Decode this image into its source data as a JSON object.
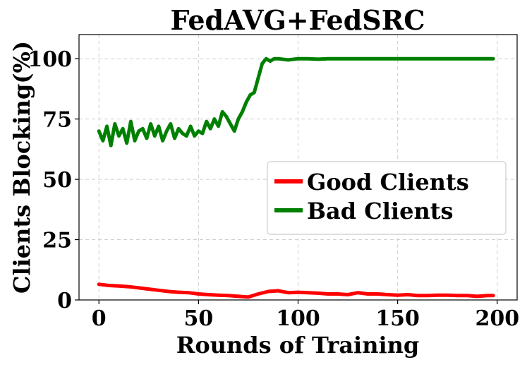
{
  "chart_data": {
    "type": "line",
    "title": "FedAVG+FedSRC",
    "xlabel": "Rounds of Training",
    "ylabel": "Clients Blocking(%)",
    "xlim": [
      -10,
      210
    ],
    "ylim": [
      0,
      110
    ],
    "xticks": [
      0,
      50,
      100,
      150,
      200
    ],
    "yticks": [
      0,
      25,
      50,
      75,
      100
    ],
    "grid": true,
    "legend_position": "center-right",
    "series": [
      {
        "name": "Good Clients",
        "color": "#ff0000",
        "x": [
          0,
          5,
          10,
          15,
          20,
          25,
          30,
          35,
          40,
          45,
          50,
          55,
          60,
          65,
          70,
          75,
          80,
          85,
          90,
          95,
          100,
          105,
          110,
          115,
          120,
          125,
          130,
          135,
          140,
          145,
          150,
          155,
          160,
          165,
          170,
          175,
          180,
          185,
          190,
          195,
          198
        ],
        "values": [
          6.5,
          6,
          5.8,
          5.5,
          5,
          4.5,
          4,
          3.5,
          3.2,
          3,
          2.5,
          2.2,
          2,
          1.8,
          1.5,
          1.2,
          2.5,
          3.5,
          3.8,
          3,
          3.2,
          3,
          2.8,
          2.5,
          2.5,
          2.2,
          3,
          2.5,
          2.5,
          2.2,
          2,
          2.2,
          1.8,
          1.8,
          2,
          2,
          1.8,
          1.8,
          1.5,
          1.8,
          1.8
        ]
      },
      {
        "name": "Bad Clients",
        "color": "#008000",
        "x": [
          0,
          2,
          4,
          6,
          8,
          10,
          12,
          14,
          16,
          18,
          20,
          22,
          24,
          26,
          28,
          30,
          32,
          34,
          36,
          38,
          40,
          42,
          44,
          46,
          48,
          50,
          52,
          54,
          56,
          58,
          60,
          62,
          64,
          66,
          68,
          70,
          72,
          74,
          76,
          78,
          80,
          82,
          84,
          86,
          88,
          90,
          95,
          100,
          105,
          110,
          115,
          120,
          125,
          130,
          140,
          150,
          160,
          170,
          180,
          190,
          198
        ],
        "values": [
          70,
          66,
          72,
          64,
          73,
          68,
          71,
          65,
          74,
          66,
          70,
          71,
          67,
          73,
          68,
          72,
          66,
          70,
          73,
          67,
          71,
          69,
          68,
          72,
          68,
          70,
          69,
          74,
          71,
          75,
          72,
          78,
          76,
          73,
          70,
          75,
          78,
          82,
          85,
          86,
          92,
          98,
          100,
          99,
          100,
          100,
          99.5,
          100,
          100,
          99.8,
          100,
          100,
          100,
          100,
          100,
          100,
          100,
          100,
          100,
          100,
          100
        ]
      }
    ]
  }
}
